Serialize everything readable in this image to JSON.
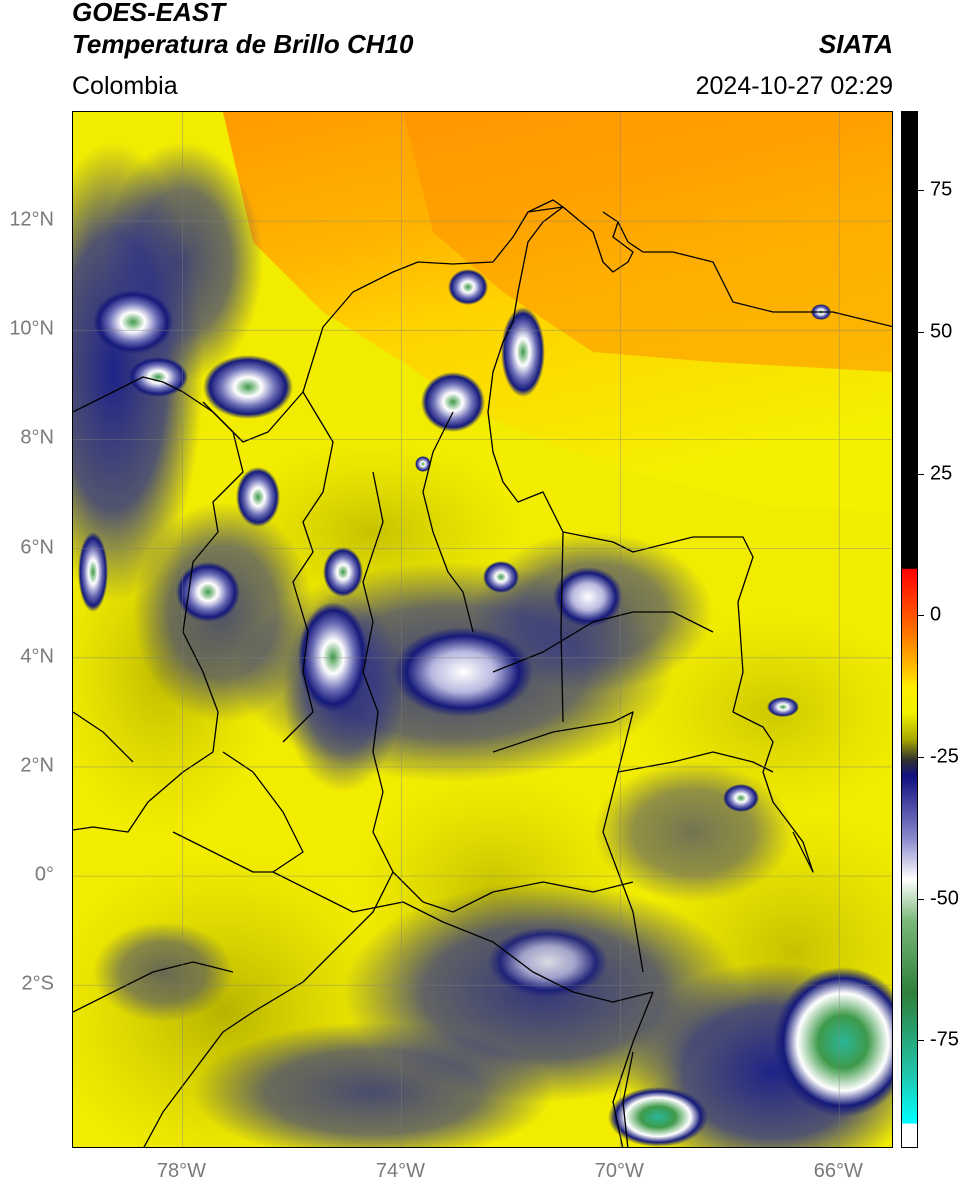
{
  "header": {
    "satellite": "GOES-EAST",
    "product": "Temperatura de Brillo CH10",
    "region": "Colombia",
    "agency": "SIATA",
    "datetime": "2024-10-27 02:29"
  },
  "map": {
    "lat_labels": [
      "12°N",
      "10°N",
      "8°N",
      "6°N",
      "4°N",
      "2°N",
      "0°",
      "2°S"
    ],
    "lon_labels": [
      "78°W",
      "74°W",
      "70°W",
      "66°W"
    ],
    "lat_values": [
      12,
      10,
      8,
      6,
      4,
      2,
      0,
      -2
    ],
    "lon_values": [
      -78,
      -74,
      -70,
      -66
    ],
    "lat_range": [
      -5.0,
      14.0
    ],
    "lon_range": [
      -80.0,
      -65.0
    ],
    "grid": true,
    "colors": {
      "warm_orange": "#ff9500",
      "yellow": "#f5ef00",
      "olive": "#b8b400",
      "navy": "#151a7a",
      "white_core": "#ffffff",
      "green_core": "#3e9a4a",
      "cyan_core": "#1fc8b0"
    }
  },
  "colorbar": {
    "labels": [
      "75",
      "50",
      "25",
      "0",
      "-25",
      "-50",
      "-75"
    ],
    "values": [
      75,
      50,
      25,
      0,
      -25,
      -50,
      -75
    ],
    "range": [
      -94,
      89
    ]
  }
}
